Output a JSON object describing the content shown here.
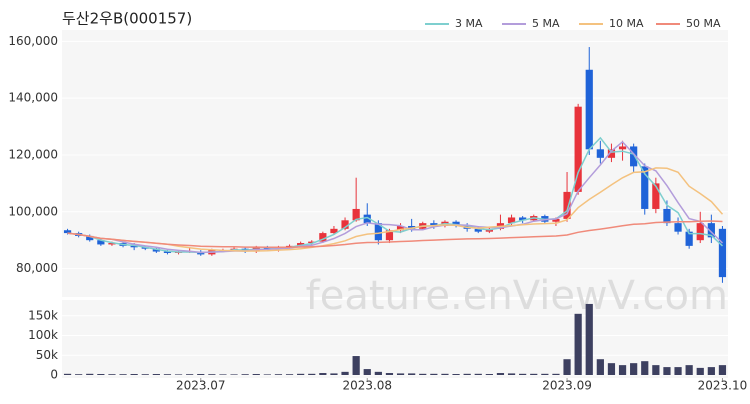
{
  "chart_data": {
    "type": "candlestick",
    "title": "두산2우B(000157)",
    "watermark": "feature.enViewV.com",
    "open": [
      93500,
      92500,
      91500,
      90000,
      88500,
      89000,
      88000,
      87500,
      87000,
      86000,
      85500,
      86000,
      86000,
      85000,
      86500,
      86500,
      87000,
      86000,
      87500,
      87000,
      87500,
      88000,
      89000,
      89500,
      92500,
      94000,
      97000,
      99000,
      96000,
      90000,
      93500,
      95000,
      94000,
      96000,
      95000,
      96500,
      95000,
      94000,
      93000,
      94000,
      96000,
      98000,
      97000,
      98500,
      96500,
      97500,
      107000,
      150000,
      122000,
      119000,
      122000,
      123000,
      116000,
      101000,
      101000,
      96000,
      93000,
      90000,
      96000,
      94000
    ],
    "high": [
      94000,
      93000,
      92000,
      90500,
      89500,
      89500,
      89000,
      88000,
      87500,
      86500,
      86500,
      87500,
      86500,
      87000,
      87000,
      87500,
      87500,
      88000,
      88000,
      88000,
      88500,
      89500,
      90000,
      93000,
      95000,
      98000,
      112000,
      103000,
      97000,
      94000,
      96000,
      97500,
      96500,
      97000,
      97000,
      97000,
      96000,
      95000,
      94500,
      99000,
      99000,
      98500,
      99000,
      99000,
      98000,
      114000,
      138000,
      158000,
      125000,
      124000,
      125000,
      124000,
      117000,
      112000,
      104000,
      98000,
      94000,
      100000,
      99000,
      95000
    ],
    "low": [
      92000,
      91000,
      89500,
      88000,
      88000,
      87500,
      86500,
      86500,
      85500,
      85000,
      85000,
      85500,
      84500,
      84500,
      86000,
      86000,
      85500,
      85500,
      86500,
      86000,
      87000,
      87500,
      88000,
      89000,
      92000,
      93500,
      96500,
      95000,
      88500,
      89000,
      92500,
      93000,
      93500,
      94000,
      94500,
      94500,
      93000,
      92500,
      92500,
      93500,
      95000,
      96000,
      96500,
      96000,
      95000,
      96500,
      106000,
      120000,
      117000,
      117500,
      118000,
      114000,
      99000,
      99500,
      95000,
      92000,
      87000,
      89000,
      89000,
      75000
    ],
    "close": [
      92500,
      91500,
      90000,
      88500,
      89000,
      88000,
      87500,
      87000,
      86000,
      85500,
      86000,
      86000,
      85000,
      86500,
      86500,
      87000,
      86000,
      87500,
      87000,
      87500,
      88000,
      89000,
      89500,
      92500,
      94000,
      97000,
      101000,
      96000,
      90000,
      93500,
      95000,
      94000,
      96000,
      95000,
      96500,
      95000,
      94000,
      93000,
      94000,
      96000,
      98000,
      97000,
      98500,
      96500,
      97500,
      107000,
      137000,
      122000,
      119000,
      122000,
      123000,
      116000,
      101000,
      110000,
      96000,
      93000,
      88000,
      96000,
      91000,
      77000
    ],
    "volume": [
      3000,
      2000,
      3000,
      2500,
      2000,
      2000,
      2500,
      2000,
      2500,
      2000,
      1500,
      2000,
      2500,
      2000,
      1500,
      1500,
      2000,
      2500,
      1500,
      2000,
      2000,
      3000,
      3000,
      5000,
      4000,
      8000,
      48000,
      15000,
      8000,
      5000,
      4000,
      4000,
      3000,
      3000,
      3000,
      2500,
      3000,
      3000,
      2500,
      5000,
      4000,
      3000,
      3000,
      3000,
      3000,
      40000,
      155000,
      180000,
      40000,
      30000,
      25000,
      30000,
      35000,
      25000,
      20000,
      20000,
      25000,
      18000,
      20000,
      25000
    ],
    "xlim": [
      -0.5,
      59.5
    ],
    "xticks": [
      {
        "value": 12,
        "label": "2023.07"
      },
      {
        "value": 27,
        "label": "2023.08"
      },
      {
        "value": 45,
        "label": "2023.09"
      },
      {
        "value": 59,
        "label": "2023.10"
      }
    ],
    "ylim": [
      70000,
      164000
    ],
    "yticks": [
      {
        "value": 80000,
        "label": "80,000"
      },
      {
        "value": 100000,
        "label": "100,000"
      },
      {
        "value": 120000,
        "label": "120,000"
      },
      {
        "value": 140000,
        "label": "140,000"
      },
      {
        "value": 160000,
        "label": "160,000"
      }
    ],
    "volume_ylim": [
      0,
      190000
    ],
    "volume_yticks": [
      0,
      {
        "value": 50000,
        "label": "50k"
      },
      {
        "value": 100000,
        "label": "100k"
      },
      {
        "value": 150000,
        "label": "150k"
      }
    ],
    "up_color": "#e8333b",
    "down_color": "#1f63d8",
    "volume_color": "#3d4060",
    "moving_averages": [
      {
        "name": "3 MA",
        "period": 3,
        "color": "#7ecfcf"
      },
      {
        "name": "5 MA",
        "period": 5,
        "color": "#b39ddb"
      },
      {
        "name": "10 MA",
        "period": 10,
        "color": "#f4c27f"
      },
      {
        "name": "50 MA",
        "period": 50,
        "color": "#f08a7a"
      }
    ]
  }
}
